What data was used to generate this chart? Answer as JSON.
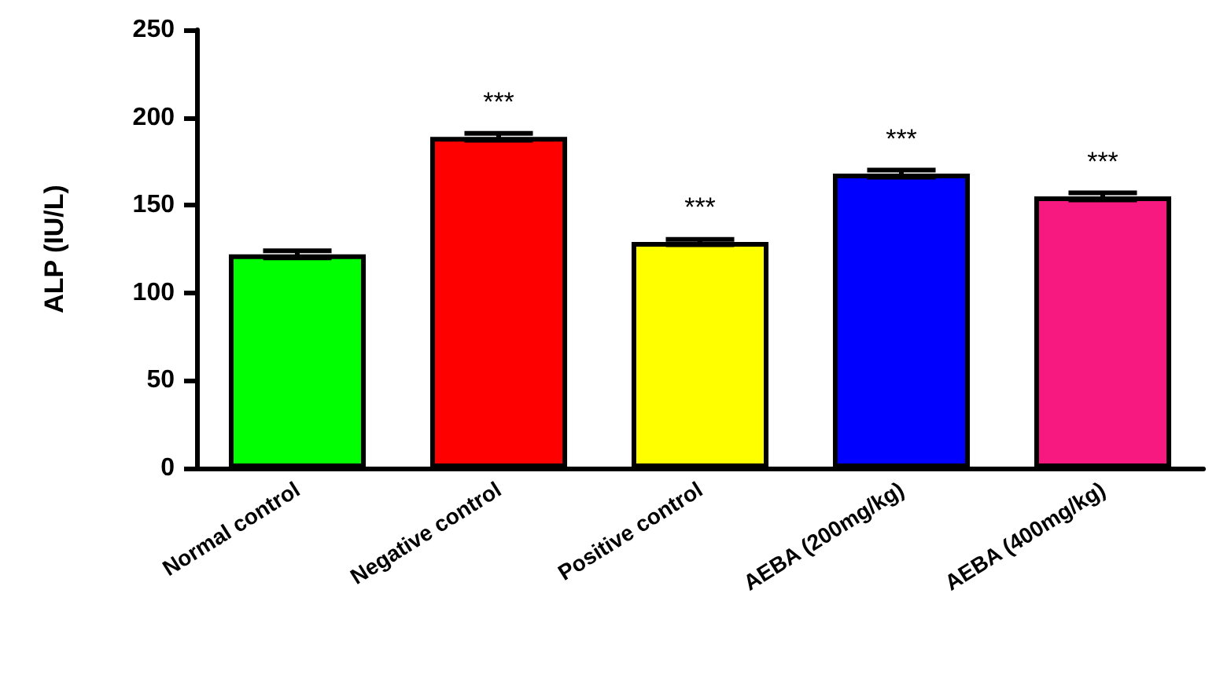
{
  "chart_data": {
    "type": "bar",
    "ylabel": "ALP (IU/L)",
    "categories": [
      "Normal control",
      "Negative control",
      "Positive control",
      "AEBA (200mg/kg)",
      "AEBA (400mg/kg)"
    ],
    "values": [
      122,
      189,
      129,
      168,
      155
    ],
    "errors": [
      2,
      2,
      1.5,
      2,
      2
    ],
    "colors": [
      "#00ff00",
      "#ff0000",
      "#ffff00",
      "#0000ff",
      "#f7197f"
    ],
    "ylim": [
      0,
      250
    ],
    "yticks": [
      0,
      50,
      100,
      150,
      200,
      250
    ],
    "grid": false,
    "annotations": [
      {
        "text": "***",
        "x": "Negative control",
        "y": 189
      },
      {
        "text": "***",
        "x": "Positive control",
        "y": 129
      },
      {
        "text": "***",
        "x": "AEBA (200mg/kg)",
        "y": 168
      },
      {
        "text": "***",
        "x": "AEBA (400mg/kg)",
        "y": 155
      }
    ]
  }
}
